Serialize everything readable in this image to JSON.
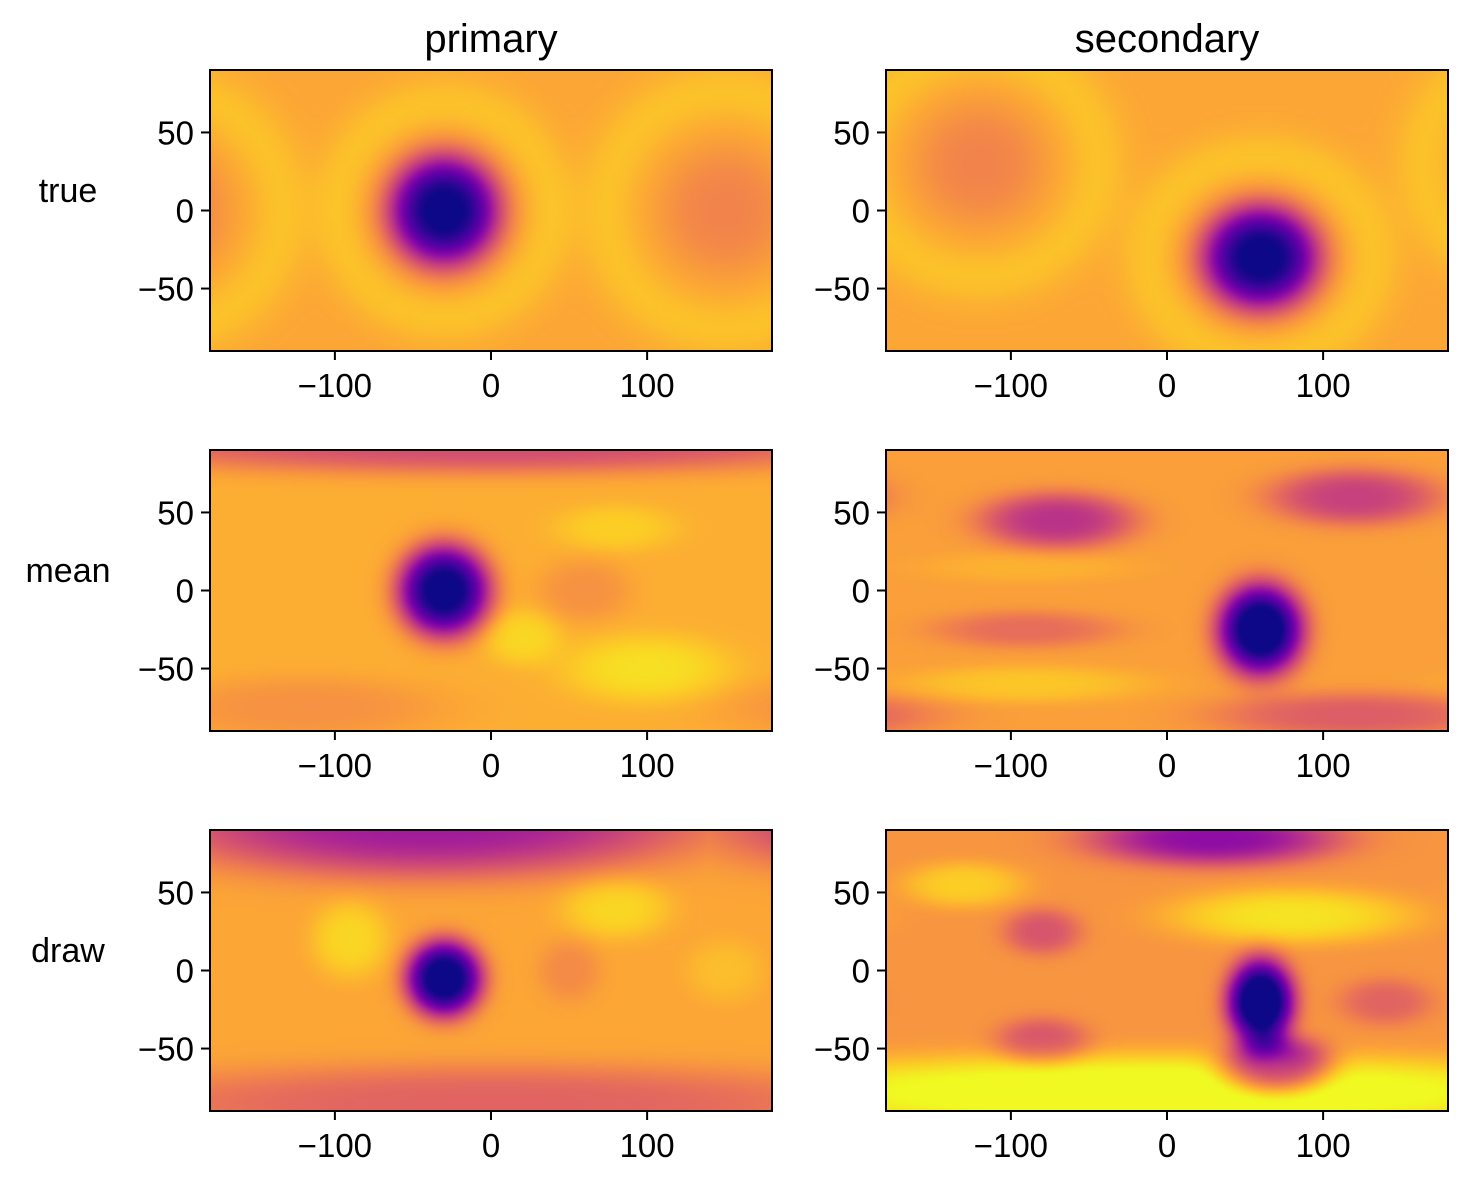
{
  "chart_data": {
    "type": "heatmap",
    "colormap": "plasma",
    "columns": [
      "primary",
      "secondary"
    ],
    "rows": [
      "true",
      "mean",
      "draw"
    ],
    "xlim": [
      -180,
      180
    ],
    "ylim": [
      -90,
      90
    ],
    "xticks": [
      -100,
      0,
      100
    ],
    "yticks": [
      -50,
      0,
      50
    ],
    "xtick_labels": [
      "−100",
      "0",
      "100"
    ],
    "ytick_labels": [
      "−50",
      "0",
      "50"
    ],
    "panels": [
      {
        "row": "true",
        "column": "primary",
        "spot": {
          "lon": -30,
          "lat": 0
        },
        "features": [
          {
            "lon": -30,
            "lat": 0,
            "rx": 36,
            "ry": 36,
            "v": 0.82,
            "ring": true
          },
          {
            "lon": 150,
            "lat": 0,
            "rx": 40,
            "ry": 40,
            "v": 0.1,
            "ring": true
          }
        ],
        "base": 0.8
      },
      {
        "row": "true",
        "column": "secondary",
        "spot": {
          "lon": 60,
          "lat": -30
        },
        "features": [
          {
            "lon": 60,
            "lat": -30,
            "rx": 38,
            "ry": 34,
            "v": 0.82,
            "ring": true
          },
          {
            "lon": -120,
            "lat": 30,
            "rx": 40,
            "ry": 38,
            "v": 0.1,
            "ring": true
          }
        ],
        "base": 0.8
      },
      {
        "row": "mean",
        "column": "primary",
        "spot": {
          "lon": -30,
          "lat": 0
        },
        "features": [
          {
            "lon": -30,
            "lat": 0,
            "rx": 30,
            "ry": 30,
            "v": 0.85
          },
          {
            "lon": 0,
            "lat": 95,
            "rx": 260,
            "ry": 20,
            "v": 0.3
          },
          {
            "lon": 100,
            "lat": -50,
            "rx": 55,
            "ry": 22,
            "v": -0.12
          },
          {
            "lon": 20,
            "lat": -30,
            "rx": 25,
            "ry": 18,
            "v": -0.1
          },
          {
            "lon": 80,
            "lat": 40,
            "rx": 40,
            "ry": 15,
            "v": -0.08
          },
          {
            "lon": 60,
            "lat": 0,
            "rx": 30,
            "ry": 20,
            "v": 0.08
          },
          {
            "lon": -120,
            "lat": -75,
            "rx": 90,
            "ry": 20,
            "v": 0.08
          }
        ],
        "base": 0.82
      },
      {
        "row": "mean",
        "column": "secondary",
        "spot": {
          "lon": 60,
          "lat": -25
        },
        "features": [
          {
            "lon": 60,
            "lat": -25,
            "rx": 28,
            "ry": 30,
            "v": 0.85
          },
          {
            "lon": -70,
            "lat": 45,
            "rx": 50,
            "ry": 18,
            "v": 0.35
          },
          {
            "lon": 120,
            "lat": 60,
            "rx": 55,
            "ry": 18,
            "v": 0.3
          },
          {
            "lon": -90,
            "lat": -25,
            "rx": 60,
            "ry": 12,
            "v": 0.15
          },
          {
            "lon": -90,
            "lat": -60,
            "rx": 80,
            "ry": 12,
            "v": -0.1
          },
          {
            "lon": 120,
            "lat": -80,
            "rx": 90,
            "ry": 15,
            "v": 0.2
          },
          {
            "lon": -90,
            "lat": 15,
            "rx": 70,
            "ry": 10,
            "v": -0.05
          }
        ],
        "base": 0.78
      },
      {
        "row": "draw",
        "column": "primary",
        "spot": {
          "lon": -30,
          "lat": -5
        },
        "features": [
          {
            "lon": -30,
            "lat": -5,
            "rx": 25,
            "ry": 25,
            "v": 0.85
          },
          {
            "lon": -40,
            "lat": 95,
            "rx": 170,
            "ry": 35,
            "v": 0.45
          },
          {
            "lon": 0,
            "lat": -85,
            "rx": 260,
            "ry": 25,
            "v": 0.2
          },
          {
            "lon": -90,
            "lat": 20,
            "rx": 25,
            "ry": 25,
            "v": -0.12
          },
          {
            "lon": 80,
            "lat": 40,
            "rx": 35,
            "ry": 20,
            "v": -0.12
          },
          {
            "lon": 150,
            "lat": 0,
            "rx": 25,
            "ry": 20,
            "v": -0.06
          },
          {
            "lon": 50,
            "lat": 0,
            "rx": 20,
            "ry": 20,
            "v": 0.08
          }
        ],
        "base": 0.8
      },
      {
        "row": "draw",
        "column": "secondary",
        "spot": {
          "lon": 60,
          "lat": -20
        },
        "features": [
          {
            "lon": 60,
            "lat": -20,
            "rx": 22,
            "ry": 28,
            "v": 0.85
          },
          {
            "lon": 70,
            "lat": -60,
            "rx": 35,
            "ry": 18,
            "v": 0.5
          },
          {
            "lon": 30,
            "lat": 85,
            "rx": 80,
            "ry": 18,
            "v": 0.45
          },
          {
            "lon": -80,
            "lat": 25,
            "rx": 25,
            "ry": 15,
            "v": 0.2
          },
          {
            "lon": -80,
            "lat": -45,
            "rx": 30,
            "ry": 15,
            "v": 0.2
          },
          {
            "lon": 0,
            "lat": -78,
            "rx": 300,
            "ry": 25,
            "v": -0.3
          },
          {
            "lon": 80,
            "lat": 35,
            "rx": 80,
            "ry": 18,
            "v": -0.2
          },
          {
            "lon": -130,
            "lat": 55,
            "rx": 40,
            "ry": 15,
            "v": -0.15
          },
          {
            "lon": 140,
            "lat": -20,
            "rx": 30,
            "ry": 15,
            "v": 0.15
          }
        ],
        "base": 0.75
      }
    ]
  }
}
